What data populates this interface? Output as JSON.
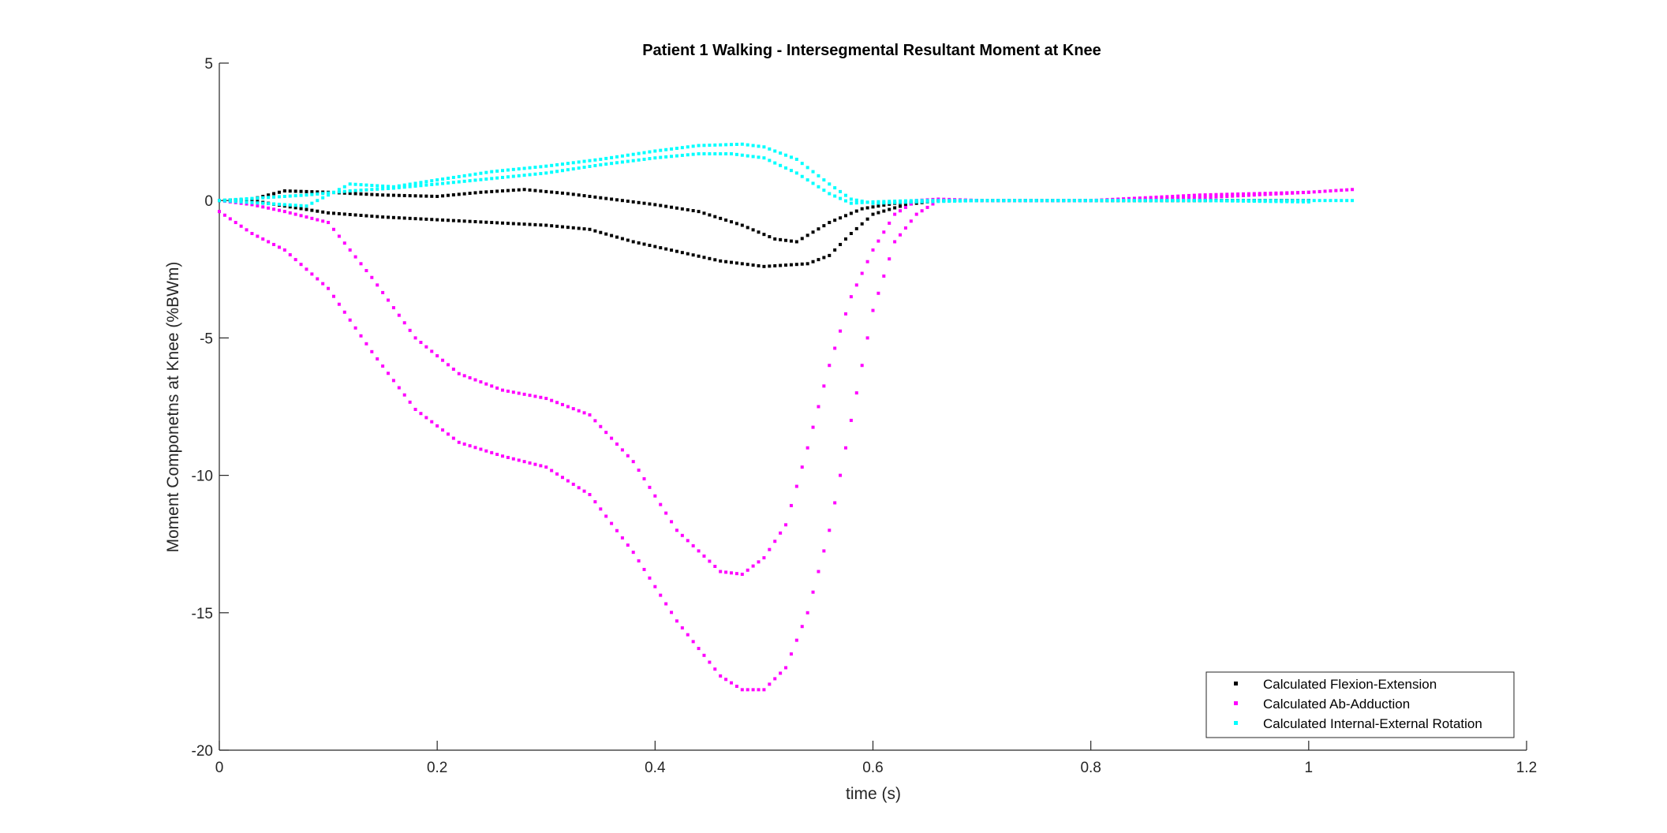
{
  "chart_data": {
    "type": "scatter",
    "title": "Patient 1 Walking - Intersegmental Resultant Moment at Knee",
    "xlabel": "time (s)",
    "ylabel": "Moment Componetns at Knee (%BWm)",
    "xlim": [
      0,
      1.2
    ],
    "ylim": [
      -20,
      5
    ],
    "xticks": [
      0,
      0.2,
      0.4,
      0.6,
      0.8,
      1,
      1.2
    ],
    "xtick_labels": [
      "0",
      "0.2",
      "0.4",
      "0.6",
      "0.8",
      "1",
      "1.2"
    ],
    "yticks": [
      5,
      0,
      -5,
      -10,
      -15,
      -20
    ],
    "ytick_labels": [
      "5",
      "0",
      "-5",
      "-10",
      "-15",
      "-20"
    ],
    "grid": false,
    "legend_position": "bottom-right",
    "series": [
      {
        "name": "Calculated Flexion-Extension",
        "color": "#000000",
        "branches": [
          {
            "x": [
              0,
              0.03,
              0.06,
              0.1,
              0.15,
              0.2,
              0.24,
              0.28,
              0.32,
              0.36,
              0.4,
              0.44,
              0.48,
              0.51,
              0.53,
              0.56,
              0.59,
              0.62,
              0.66,
              0.7,
              0.8,
              0.9,
              1.0
            ],
            "y": [
              0,
              0.05,
              0.35,
              0.3,
              0.2,
              0.15,
              0.3,
              0.4,
              0.25,
              0.05,
              -0.15,
              -0.4,
              -0.9,
              -1.4,
              -1.5,
              -0.8,
              -0.3,
              -0.1,
              0,
              0,
              0,
              0,
              0
            ]
          },
          {
            "x": [
              0,
              0.03,
              0.06,
              0.1,
              0.15,
              0.2,
              0.25,
              0.3,
              0.34,
              0.38,
              0.42,
              0.46,
              0.5,
              0.54,
              0.56,
              0.58,
              0.6,
              0.63,
              0.66,
              0.7,
              0.8,
              0.9,
              1.0
            ],
            "y": [
              0,
              0,
              -0.2,
              -0.45,
              -0.6,
              -0.7,
              -0.8,
              -0.9,
              -1.05,
              -1.5,
              -1.85,
              -2.2,
              -2.4,
              -2.3,
              -2.0,
              -1.2,
              -0.5,
              -0.15,
              0,
              0,
              0,
              0,
              0
            ]
          }
        ]
      },
      {
        "name": "Calculated Ab-Adduction",
        "color": "#ff00ff",
        "branches": [
          {
            "x": [
              0,
              0.03,
              0.06,
              0.1,
              0.14,
              0.18,
              0.22,
              0.26,
              0.3,
              0.34,
              0.38,
              0.42,
              0.46,
              0.48,
              0.5,
              0.52,
              0.54,
              0.56,
              0.58,
              0.6,
              0.62,
              0.64,
              0.66,
              0.7,
              0.8,
              0.9,
              0.95,
              1.0
            ],
            "y": [
              0,
              -0.15,
              -0.4,
              -0.8,
              -2.8,
              -5.0,
              -6.3,
              -6.9,
              -7.2,
              -7.8,
              -9.5,
              -12.0,
              -13.5,
              -13.6,
              -13.0,
              -11.8,
              -9.0,
              -6.0,
              -3.5,
              -1.8,
              -0.5,
              0,
              0.05,
              0,
              0,
              0.1,
              0.2,
              0.3
            ]
          },
          {
            "x": [
              0,
              0.03,
              0.06,
              0.1,
              0.14,
              0.18,
              0.22,
              0.26,
              0.3,
              0.34,
              0.38,
              0.42,
              0.46,
              0.48,
              0.5,
              0.52,
              0.54,
              0.56,
              0.58,
              0.6,
              0.62,
              0.64,
              0.66,
              0.7,
              0.8,
              0.9,
              1.0,
              1.04
            ],
            "y": [
              -0.4,
              -1.2,
              -1.8,
              -3.2,
              -5.5,
              -7.6,
              -8.8,
              -9.3,
              -9.7,
              -10.7,
              -12.8,
              -15.3,
              -17.3,
              -17.8,
              -17.8,
              -17.0,
              -15.0,
              -12.0,
              -8.0,
              -4.0,
              -1.5,
              -0.5,
              0,
              0,
              0,
              0.2,
              0.3,
              0.4
            ]
          }
        ]
      },
      {
        "name": "Calculated Internal-External Rotation",
        "color": "#00ffff",
        "branches": [
          {
            "x": [
              0,
              0.04,
              0.08,
              0.12,
              0.16,
              0.2,
              0.25,
              0.3,
              0.35,
              0.4,
              0.44,
              0.48,
              0.5,
              0.53,
              0.56,
              0.58,
              0.6,
              0.64,
              0.7,
              0.8,
              0.9,
              1.0,
              1.04
            ],
            "y": [
              0,
              -0.1,
              -0.2,
              0.6,
              0.5,
              0.75,
              1.05,
              1.25,
              1.5,
              1.8,
              2.0,
              2.05,
              1.95,
              1.5,
              0.6,
              0.05,
              -0.1,
              -0.05,
              0,
              0,
              0,
              0,
              0
            ]
          },
          {
            "x": [
              0,
              0.04,
              0.08,
              0.12,
              0.16,
              0.2,
              0.25,
              0.3,
              0.35,
              0.4,
              0.44,
              0.47,
              0.5,
              0.53,
              0.56,
              0.58,
              0.6,
              0.64,
              0.7,
              0.8,
              0.9,
              1.0
            ],
            "y": [
              0,
              0.1,
              0.2,
              0.35,
              0.45,
              0.6,
              0.8,
              1.0,
              1.3,
              1.55,
              1.7,
              1.7,
              1.55,
              1.0,
              0.25,
              -0.1,
              -0.05,
              0,
              0,
              0,
              0,
              -0.05
            ]
          }
        ]
      }
    ]
  }
}
